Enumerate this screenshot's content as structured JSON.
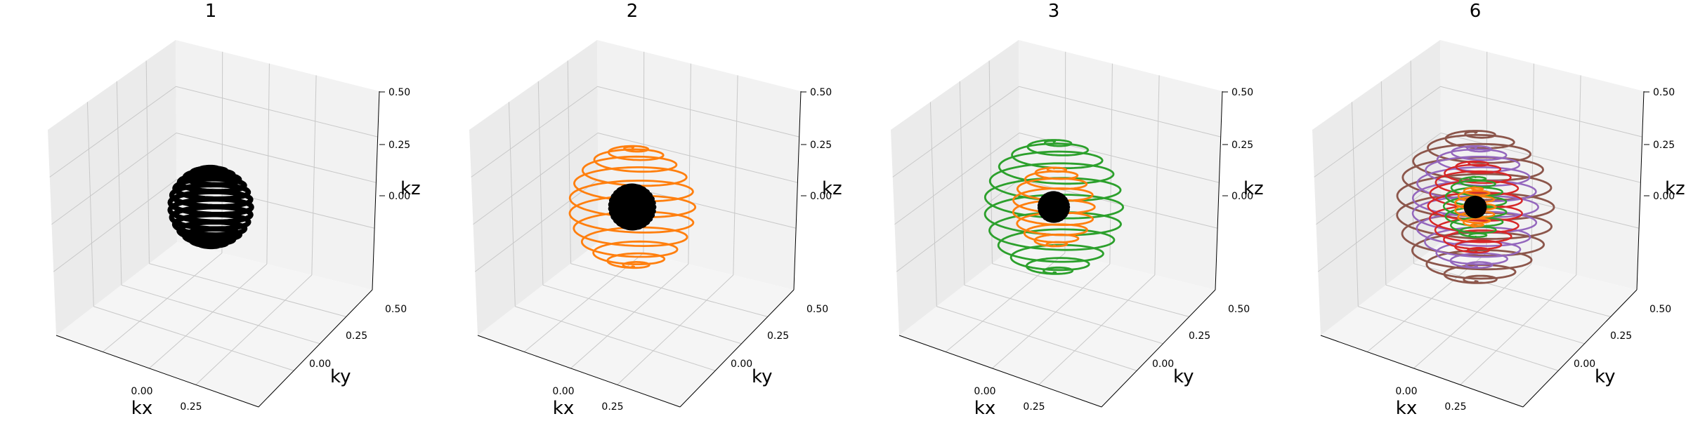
{
  "colors": {
    "black": "#000000",
    "orange": "#ff7f0e",
    "green": "#2ca02c",
    "red": "#d62728",
    "purple": "#9467bd",
    "brown": "#8c564b",
    "pane_left": "#ebebeb",
    "pane_right": "#f2f2f2",
    "pane_floor": "#f5f5f5",
    "grid": "#c8c8c8"
  },
  "chart_data": [
    {
      "type": "3d-spiral",
      "title": "1",
      "xlabel": "kx",
      "ylabel": "ky",
      "zlabel": "kz",
      "xticks": [
        "0.00",
        "0.25"
      ],
      "yticks": [
        "0.00",
        "0.25",
        "0.50"
      ],
      "zticks": [
        "0.00",
        "0.25",
        "0.50"
      ],
      "grid": true,
      "series": [
        {
          "color": "black",
          "radius": 0.13,
          "turns": 16,
          "linewidth": 7
        }
      ]
    },
    {
      "type": "3d-spiral",
      "title": "2",
      "xlabel": "kx",
      "ylabel": "ky",
      "zlabel": "kz",
      "xticks": [
        "0.00",
        "0.25"
      ],
      "yticks": [
        "0.00",
        "0.25",
        "0.50"
      ],
      "zticks": [
        "0.00",
        "0.25",
        "0.50"
      ],
      "grid": true,
      "series": [
        {
          "color": "orange",
          "radius": 0.2,
          "turns": 12,
          "linewidth": 2.8
        },
        {
          "color": "black",
          "radius": 0.07,
          "turns": 16,
          "linewidth": 6
        }
      ]
    },
    {
      "type": "3d-spiral",
      "title": "3",
      "xlabel": "kx",
      "ylabel": "ky",
      "zlabel": "kz",
      "xticks": [
        "0.00",
        "0.25"
      ],
      "yticks": [
        "0.00",
        "0.25",
        "0.50"
      ],
      "zticks": [
        "0.00",
        "0.25",
        "0.50"
      ],
      "grid": true,
      "series": [
        {
          "color": "green",
          "radius": 0.22,
          "turns": 12,
          "linewidth": 2.8
        },
        {
          "color": "orange",
          "radius": 0.13,
          "turns": 10,
          "linewidth": 2.8
        },
        {
          "color": "black",
          "radius": 0.045,
          "turns": 16,
          "linewidth": 6
        }
      ]
    },
    {
      "type": "3d-spiral",
      "title": "6",
      "xlabel": "kx",
      "ylabel": "ky",
      "zlabel": "kz",
      "xticks": [
        "0.00",
        "0.25"
      ],
      "yticks": [
        "0.00",
        "0.25",
        "0.50"
      ],
      "zticks": [
        "0.00",
        "0.25",
        "0.50"
      ],
      "grid": true,
      "series": [
        {
          "color": "brown",
          "radius": 0.25,
          "turns": 12,
          "linewidth": 2.8
        },
        {
          "color": "purple",
          "radius": 0.2,
          "turns": 12,
          "linewidth": 2.5
        },
        {
          "color": "red",
          "radius": 0.15,
          "turns": 11,
          "linewidth": 2.5
        },
        {
          "color": "green",
          "radius": 0.1,
          "turns": 9,
          "linewidth": 2.5
        },
        {
          "color": "orange",
          "radius": 0.065,
          "turns": 8,
          "linewidth": 2.5
        },
        {
          "color": "black",
          "radius": 0.03,
          "turns": 16,
          "linewidth": 6
        }
      ]
    }
  ]
}
